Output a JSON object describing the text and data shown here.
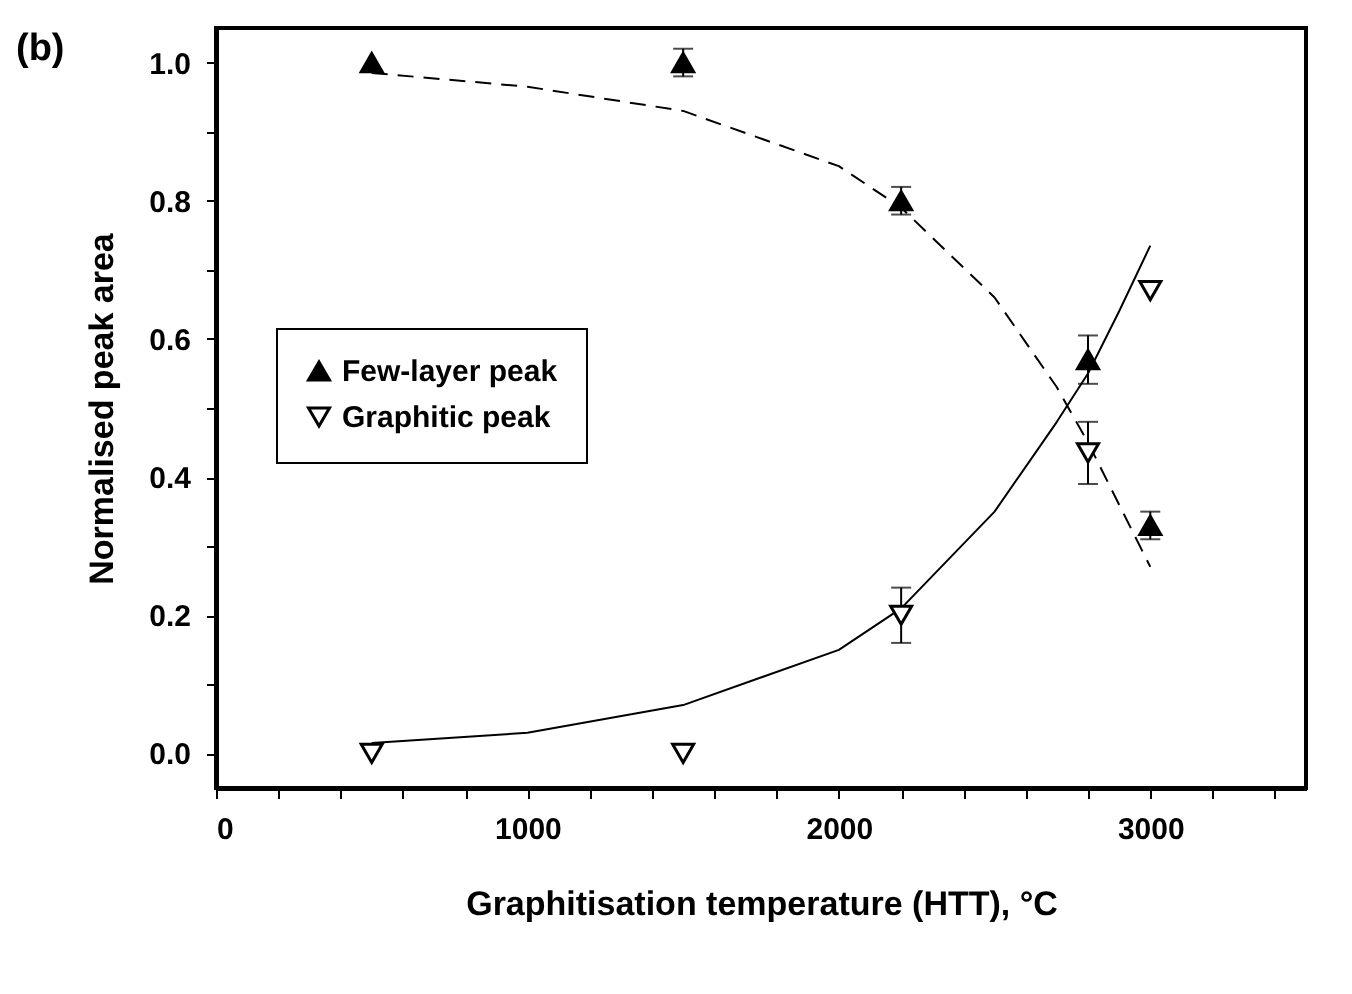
{
  "chart_data": {
    "type": "scatter",
    "annotations": [
      "(b)"
    ],
    "xlabel": "Graphitisation temperature (HTT), °C",
    "ylabel": "Normalised peak area",
    "xlim": [
      0,
      3500
    ],
    "ylim": [
      -0.05,
      1.05
    ],
    "xticks": [
      0,
      {
        "value": 200,
        "label": null
      },
      {
        "value": 400,
        "label": null
      },
      {
        "value": 600,
        "label": null
      },
      {
        "value": 800,
        "label": null
      },
      1000,
      {
        "value": 1200,
        "label": null
      },
      {
        "value": 1400,
        "label": null
      },
      {
        "value": 1600,
        "label": null
      },
      {
        "value": 1800,
        "label": null
      },
      2000,
      {
        "value": 2200,
        "label": null
      },
      {
        "value": 2400,
        "label": null
      },
      {
        "value": 2600,
        "label": null
      },
      {
        "value": 2800,
        "label": null
      },
      3000,
      {
        "value": 3200,
        "label": null
      },
      {
        "value": 3400,
        "label": null
      }
    ],
    "yticks": [
      {
        "value": 0,
        "label": "0.0"
      },
      {
        "value": 0.1,
        "label": null
      },
      {
        "value": 0.2,
        "label": "0.2"
      },
      {
        "value": 0.3,
        "label": null
      },
      {
        "value": 0.4,
        "label": "0.4"
      },
      {
        "value": 0.5,
        "label": null
      },
      {
        "value": 0.6,
        "label": "0.6"
      },
      {
        "value": 0.7,
        "label": null
      },
      {
        "value": 0.8,
        "label": "0.8"
      },
      {
        "value": 0.9,
        "label": null
      },
      {
        "value": 1,
        "label": "1.0"
      }
    ],
    "grid": false,
    "legend": "left",
    "x": [
      500,
      1500,
      2200,
      2800,
      3000
    ],
    "series": [
      {
        "name": "Few-layer peak",
        "color": "#000000",
        "marker": "triangle",
        "values": [
          1.0,
          1.0,
          0.8,
          0.57,
          0.33
        ],
        "errors": [
          null,
          0.02,
          0.02,
          0.035,
          0.02
        ]
      },
      {
        "name": "Graphitic peak",
        "color": "#000000",
        "marker": "triangle-down-open",
        "values": [
          0,
          0,
          0.2,
          0.435,
          0.67
        ],
        "errors": [
          null,
          null,
          0.04,
          0.045,
          null
        ]
      },
      {
        "type": "line",
        "color": "#000000",
        "line_style": "dashed",
        "marker": "none",
        "x": [
          500,
          1000,
          1500,
          2000,
          2200,
          2500,
          2700,
          2800,
          2900,
          3000
        ],
        "values": [
          0.985,
          0.965,
          0.93,
          0.85,
          0.79,
          0.66,
          0.53,
          0.45,
          0.36,
          0.27
        ]
      },
      {
        "type": "line",
        "color": "#000000",
        "line_style": "solid",
        "marker": "none",
        "x": [
          500,
          1000,
          1500,
          2000,
          2200,
          2500,
          2700,
          2800,
          2900,
          3000
        ],
        "values": [
          0.015,
          0.03,
          0.07,
          0.15,
          0.21,
          0.35,
          0.48,
          0.55,
          0.64,
          0.735
        ]
      }
    ]
  }
}
